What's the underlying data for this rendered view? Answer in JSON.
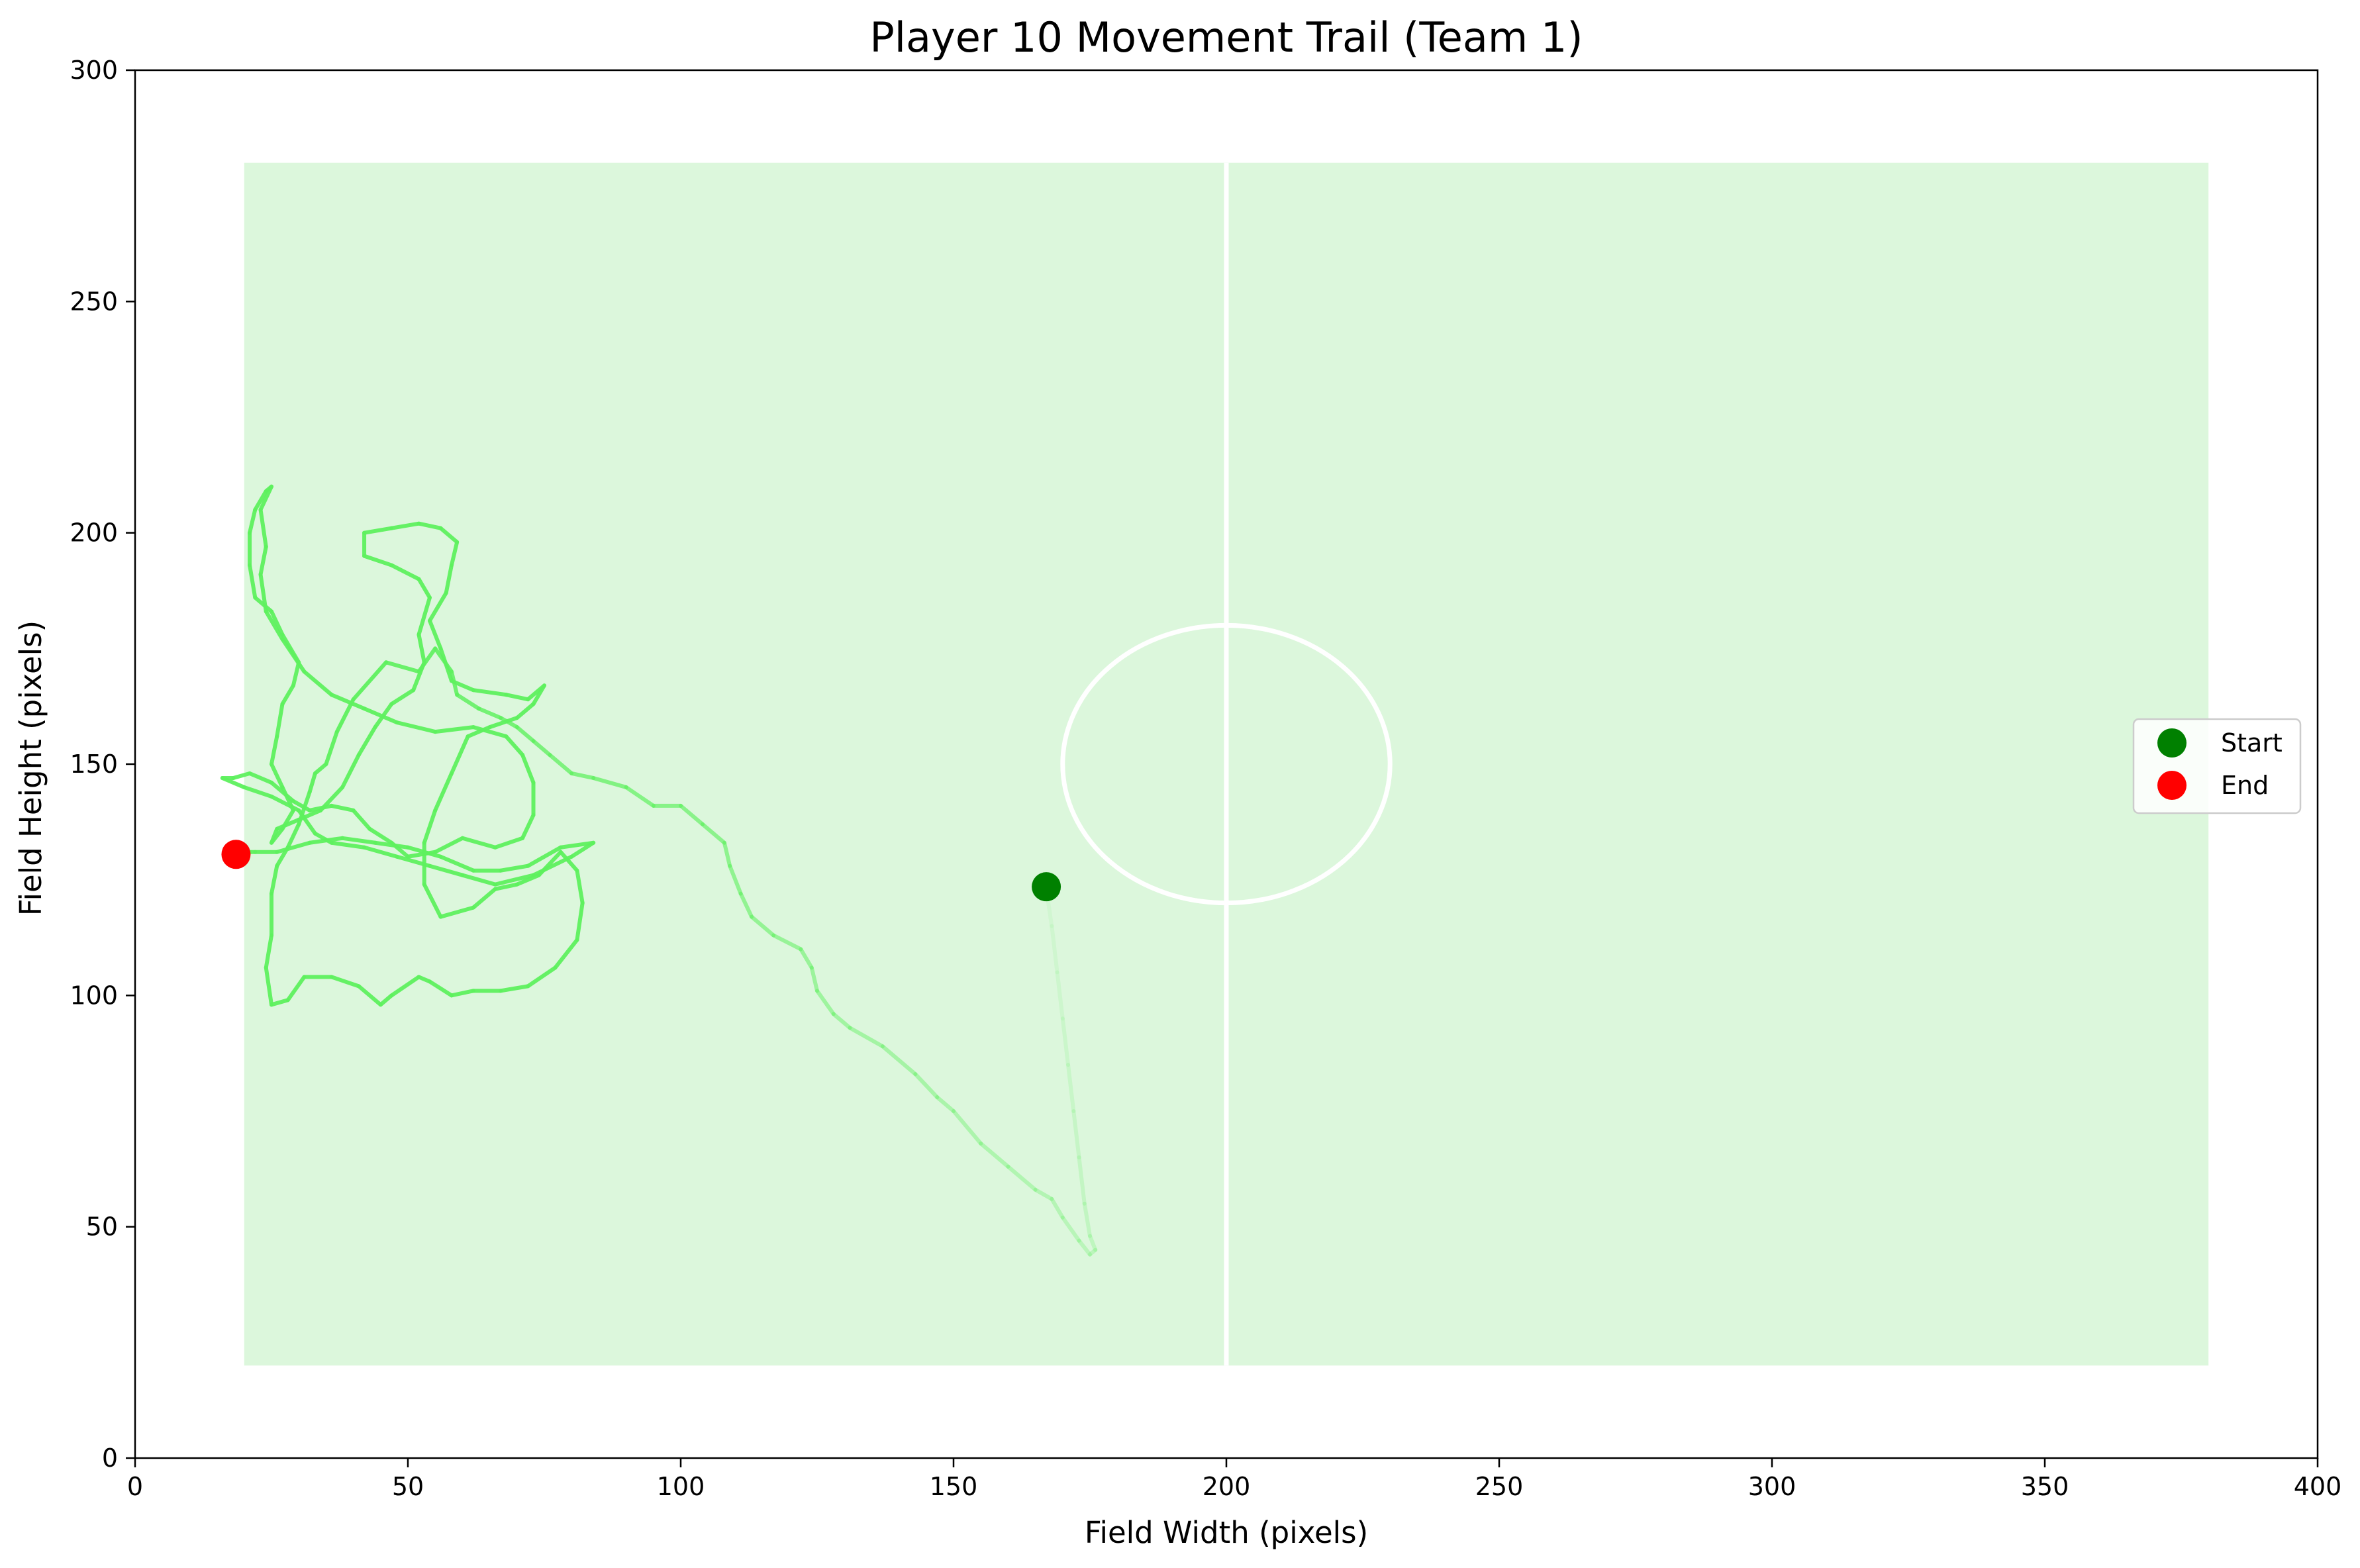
{
  "chart_data": {
    "type": "line",
    "title": "Player 10 Movement Trail (Team 1)",
    "xlabel": "Field Width (pixels)",
    "ylabel": "Field Height (pixels)",
    "xlim": [
      0,
      400
    ],
    "ylim": [
      0,
      300
    ],
    "xticks": [
      0,
      50,
      100,
      150,
      200,
      250,
      300,
      350,
      400
    ],
    "yticks": [
      0,
      50,
      100,
      150,
      200,
      250,
      300
    ],
    "grid": false,
    "legend": {
      "position": "right",
      "entries": [
        {
          "label": "Start",
          "color": "#008000"
        },
        {
          "label": "End",
          "color": "#ff0000"
        }
      ]
    },
    "field": {
      "x_range": [
        20,
        380
      ],
      "y_range": [
        20,
        280
      ],
      "fill_color": "#dcf7dc",
      "line_color": "#ffffff",
      "center_line_x": 200,
      "center_circle": {
        "cx": 200,
        "cy": 150,
        "rx": 30,
        "ry": 30
      }
    },
    "trail_color": "#5ef05e",
    "series": [
      {
        "values_xy": [
          [
            167,
            123
          ],
          [
            168,
            115
          ],
          [
            169,
            105
          ],
          [
            170,
            95
          ],
          [
            171,
            85
          ],
          [
            172,
            75
          ],
          [
            173,
            65
          ],
          [
            174,
            55
          ],
          [
            175,
            48
          ],
          [
            176,
            45
          ],
          [
            175,
            44
          ],
          [
            173,
            47
          ],
          [
            170,
            52
          ],
          [
            168,
            56
          ],
          [
            165,
            58
          ],
          [
            160,
            63
          ],
          [
            155,
            68
          ],
          [
            150,
            75
          ],
          [
            147,
            78
          ],
          [
            143,
            83
          ],
          [
            137,
            89
          ],
          [
            131,
            93
          ],
          [
            128,
            96
          ],
          [
            125,
            101
          ],
          [
            124,
            106
          ],
          [
            122,
            110
          ],
          [
            117,
            113
          ],
          [
            113,
            117
          ],
          [
            111,
            122
          ],
          [
            109,
            128
          ],
          [
            108,
            133
          ],
          [
            104,
            137
          ],
          [
            100,
            141
          ],
          [
            95,
            141
          ],
          [
            90,
            145
          ],
          [
            84,
            147
          ],
          [
            80,
            148
          ],
          [
            76,
            152
          ],
          [
            73,
            155
          ],
          [
            70,
            158
          ],
          [
            67,
            160
          ],
          [
            63,
            162
          ],
          [
            59,
            165
          ],
          [
            58,
            170
          ],
          [
            55,
            175
          ],
          [
            52,
            170
          ],
          [
            46,
            172
          ],
          [
            40,
            164
          ],
          [
            37,
            157
          ],
          [
            35,
            150
          ],
          [
            33,
            148
          ],
          [
            32,
            144
          ],
          [
            30,
            137
          ],
          [
            28,
            132
          ],
          [
            26,
            128
          ],
          [
            25,
            122
          ],
          [
            25,
            113
          ],
          [
            24,
            106
          ],
          [
            25,
            98
          ],
          [
            28,
            99
          ],
          [
            31,
            104
          ],
          [
            36,
            104
          ],
          [
            41,
            102
          ],
          [
            45,
            98
          ],
          [
            47,
            100
          ],
          [
            52,
            104
          ],
          [
            54,
            103
          ],
          [
            58,
            100
          ],
          [
            62,
            101
          ],
          [
            67,
            101
          ],
          [
            72,
            102
          ],
          [
            77,
            106
          ],
          [
            81,
            112
          ],
          [
            82,
            120
          ],
          [
            81,
            127
          ],
          [
            78,
            131
          ],
          [
            74,
            126
          ],
          [
            70,
            124
          ],
          [
            66,
            123
          ],
          [
            62,
            119
          ],
          [
            56,
            117
          ],
          [
            53,
            124
          ],
          [
            53,
            133
          ],
          [
            55,
            140
          ],
          [
            58,
            148
          ],
          [
            61,
            156
          ],
          [
            65,
            158
          ],
          [
            70,
            160
          ],
          [
            73,
            163
          ],
          [
            75,
            167
          ],
          [
            72,
            164
          ],
          [
            68,
            165
          ],
          [
            62,
            166
          ],
          [
            58,
            168
          ],
          [
            56,
            175
          ],
          [
            54,
            181
          ],
          [
            57,
            187
          ],
          [
            58,
            193
          ],
          [
            59,
            198
          ],
          [
            56,
            201
          ],
          [
            52,
            202
          ],
          [
            47,
            201
          ],
          [
            42,
            200
          ],
          [
            42,
            195
          ],
          [
            47,
            193
          ],
          [
            52,
            190
          ],
          [
            54,
            186
          ],
          [
            52,
            178
          ],
          [
            53,
            172
          ],
          [
            51,
            166
          ],
          [
            47,
            163
          ],
          [
            44,
            158
          ],
          [
            41,
            152
          ],
          [
            38,
            145
          ],
          [
            34,
            140
          ],
          [
            30,
            138
          ],
          [
            26,
            136
          ],
          [
            25,
            133
          ],
          [
            27,
            136
          ],
          [
            29,
            140
          ],
          [
            27,
            145
          ],
          [
            25,
            150
          ],
          [
            26,
            156
          ],
          [
            27,
            163
          ],
          [
            29,
            167
          ],
          [
            30,
            172
          ],
          [
            27,
            178
          ],
          [
            25,
            183
          ],
          [
            22,
            186
          ],
          [
            21,
            193
          ],
          [
            21,
            200
          ],
          [
            22,
            205
          ],
          [
            24,
            209
          ],
          [
            25,
            210
          ],
          [
            23,
            205
          ],
          [
            24,
            197
          ],
          [
            23,
            191
          ],
          [
            24,
            183
          ],
          [
            27,
            177
          ],
          [
            31,
            170
          ],
          [
            36,
            165
          ],
          [
            42,
            162
          ],
          [
            48,
            159
          ],
          [
            55,
            157
          ],
          [
            62,
            158
          ],
          [
            68,
            156
          ],
          [
            71,
            152
          ],
          [
            73,
            146
          ],
          [
            73,
            139
          ],
          [
            71,
            134
          ],
          [
            66,
            132
          ],
          [
            60,
            134
          ],
          [
            55,
            131
          ],
          [
            50,
            130
          ],
          [
            47,
            133
          ],
          [
            43,
            136
          ],
          [
            40,
            140
          ],
          [
            36,
            141
          ],
          [
            32,
            140
          ],
          [
            29,
            142
          ],
          [
            25,
            146
          ],
          [
            21,
            148
          ],
          [
            18,
            147
          ],
          [
            16,
            147
          ],
          [
            20,
            145
          ],
          [
            25,
            143
          ],
          [
            30,
            140
          ],
          [
            33,
            135
          ],
          [
            36,
            133
          ],
          [
            42,
            132
          ],
          [
            48,
            130
          ],
          [
            54,
            128
          ],
          [
            60,
            126
          ],
          [
            66,
            124
          ],
          [
            73,
            126
          ],
          [
            80,
            130
          ],
          [
            84,
            133
          ],
          [
            78,
            132
          ],
          [
            72,
            128
          ],
          [
            67,
            127
          ],
          [
            62,
            127
          ],
          [
            56,
            130
          ],
          [
            50,
            132
          ],
          [
            44,
            133
          ],
          [
            38,
            134
          ],
          [
            32,
            133
          ],
          [
            26,
            131
          ],
          [
            22,
            131
          ],
          [
            19,
            131
          ]
        ]
      }
    ],
    "points": [
      {
        "name": "Start",
        "x": 167,
        "y": 123.5,
        "color": "#008000"
      },
      {
        "name": "End",
        "x": 18.5,
        "y": 130.5,
        "color": "#ff0000"
      }
    ]
  }
}
